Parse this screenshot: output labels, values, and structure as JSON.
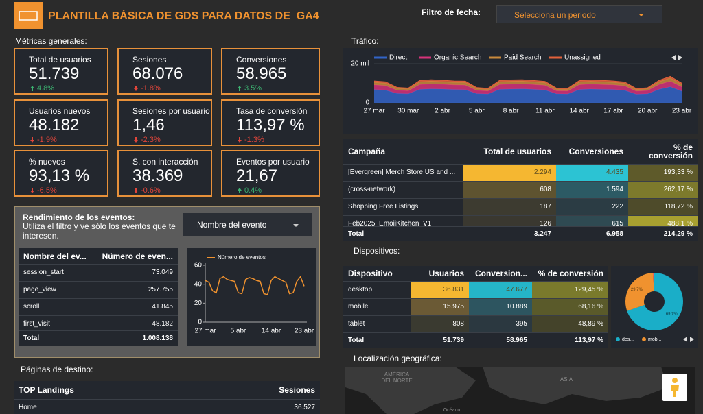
{
  "header": {
    "title": "PLANTILLA BÁSICA DE GDS PARA DATOS DE  GA4",
    "date_filter_label": "Filtro de fecha:",
    "date_filter_placeholder": "Selecciona un periodo"
  },
  "metrics": {
    "title": "Métricas generales:",
    "cards": [
      {
        "label": "Total de usuarios",
        "value": "51.739",
        "change": "4.8%",
        "trend": "up"
      },
      {
        "label": "Sesiones",
        "value": "68.076",
        "change": "-1.8%",
        "trend": "down"
      },
      {
        "label": "Conversiones",
        "value": "58.965",
        "change": "3.5%",
        "trend": "up"
      },
      {
        "label": "Usuarios nuevos",
        "value": "48.182",
        "change": "-1.9%",
        "trend": "down"
      },
      {
        "label": "Sesiones por usuario",
        "value": "1,46",
        "change": "-2.3%",
        "trend": "down"
      },
      {
        "label": "Tasa de conversión",
        "value": "113,97 %",
        "change": "-1.3%",
        "trend": "down"
      },
      {
        "label": "% nuevos",
        "value": "93,13 %",
        "change": "-6.5%",
        "trend": "down"
      },
      {
        "label": "S. con interacción",
        "value": "38.369",
        "change": "-0.6%",
        "trend": "down"
      },
      {
        "label": "Eventos por usuario",
        "value": "21,67",
        "change": "0.4%",
        "trend": "up"
      }
    ]
  },
  "traffic": {
    "title": "Tráfico:",
    "chart_data": {
      "type": "area",
      "stacked": true,
      "categories": [
        "27 mar",
        null,
        null,
        "30 mar",
        null,
        null,
        "2 abr",
        null,
        null,
        "5 abr",
        null,
        null,
        "8 abr",
        null,
        null,
        "11 abr",
        null,
        null,
        "14 abr",
        null,
        null,
        "17 abr",
        null,
        null,
        "20 abr",
        null,
        null,
        "23 abr"
      ],
      "series": [
        {
          "name": "Direct",
          "color": "#3264c8",
          "values": [
            6800,
            6500,
            4800,
            4600,
            6900,
            7100,
            7000,
            6800,
            6700,
            4700,
            4500,
            6900,
            7000,
            7100,
            6900,
            6600,
            4600,
            4500,
            6800,
            7000,
            6900,
            6800,
            6400,
            4400,
            4600,
            6900,
            8200,
            6000
          ]
        },
        {
          "name": "Organic Search",
          "color": "#d6337a",
          "values": [
            2400,
            2300,
            1700,
            1600,
            2500,
            2600,
            2500,
            2400,
            2400,
            1700,
            1600,
            2500,
            2600,
            2600,
            2500,
            2400,
            1600,
            1600,
            2500,
            2600,
            2500,
            2400,
            2300,
            1600,
            1700,
            2500,
            2900,
            2200
          ]
        },
        {
          "name": "Paid Search",
          "color": "#c98a3c",
          "values": [
            1300,
            1250,
            900,
            850,
            1350,
            1400,
            1350,
            1300,
            1300,
            900,
            850,
            1350,
            1400,
            1400,
            1350,
            1300,
            850,
            850,
            1350,
            1400,
            1350,
            1300,
            1250,
            850,
            900,
            1350,
            1600,
            1200
          ]
        },
        {
          "name": "Unassigned",
          "color": "#e3613b",
          "values": [
            700,
            680,
            500,
            480,
            720,
            740,
            720,
            700,
            690,
            500,
            480,
            720,
            740,
            730,
            710,
            690,
            480,
            470,
            720,
            740,
            720,
            700,
            680,
            470,
            490,
            720,
            850,
            650
          ]
        }
      ],
      "ylim": [
        0,
        20000
      ],
      "yticks": [
        0,
        {
          "value": 20000,
          "label": "20 mil"
        }
      ]
    }
  },
  "campaigns": {
    "columns": [
      "Campaña",
      "Total de usuarios",
      "Conversiones",
      "% de conversión"
    ],
    "rows": [
      [
        "[Evergreen] Merch Store US and ...",
        "2.294",
        "4.435",
        "193,33 %"
      ],
      [
        "(cross-network)",
        "608",
        "1.594",
        "262,17 %"
      ],
      [
        "Shopping Free Listings",
        "187",
        "222",
        "118,72 %"
      ],
      [
        "Feb2025_EmojiKitchen_V1",
        "126",
        "615",
        "488,1 %"
      ]
    ],
    "total": [
      "Total",
      "3.247",
      "6.958",
      "214,29 %"
    ]
  },
  "events": {
    "title": "Rendimiento de los eventos:",
    "subtitle": "Utiliza el filtro y ve sólo los eventos que te interesen.",
    "filter": "Nombre del evento",
    "table": {
      "columns": [
        "Nombre del ev...",
        "Número de even..."
      ],
      "rows": [
        [
          "session_start",
          "73.049"
        ],
        [
          "page_view",
          "257.755"
        ],
        [
          "scroll",
          "41.845"
        ],
        [
          "first_visit",
          "48.182"
        ]
      ],
      "total": [
        "Total",
        "1.008.138"
      ]
    },
    "chart_data": {
      "type": "line",
      "categories": [
        "27 mar",
        null,
        null,
        null,
        null,
        null,
        null,
        null,
        null,
        "5 abr",
        null,
        null,
        null,
        null,
        null,
        null,
        null,
        null,
        "14 abr",
        null,
        null,
        null,
        null,
        null,
        null,
        null,
        null,
        "23 abr"
      ],
      "series": [
        {
          "name": "Número de eventos",
          "color": "#f0922f",
          "values": [
            44,
            42,
            33,
            31,
            46,
            48,
            45,
            44,
            43,
            31,
            30,
            45,
            47,
            46,
            44,
            43,
            30,
            29,
            44,
            48,
            46,
            44,
            42,
            30,
            31,
            43,
            48,
            38
          ]
        }
      ],
      "ylim": [
        0,
        60
      ],
      "yticks": [
        0,
        20,
        40,
        60
      ]
    }
  },
  "devices": {
    "title": "Dispositivos:",
    "table": {
      "columns": [
        "Dispositivo",
        "Usuarios",
        "Conversion...",
        "% de conversión"
      ],
      "rows": [
        [
          "desktop",
          "36.831",
          "47.677",
          "129,45 %"
        ],
        [
          "mobile",
          "15.975",
          "10.889",
          "68,16 %"
        ],
        [
          "tablet",
          "808",
          "395",
          "48,89 %"
        ]
      ],
      "total": [
        "Total",
        "51.739",
        "58.965",
        "113,97 %"
      ]
    },
    "chart_data": {
      "type": "pie",
      "donut": true,
      "categories": [
        "des...",
        "mob...",
        null
      ],
      "values": [
        69.7,
        29.7,
        0.6
      ],
      "value_labels": [
        "69,7%",
        "29,7%",
        null
      ],
      "colors": [
        "#1aaec8",
        "#f0922f",
        "#e8308c"
      ]
    }
  },
  "map": {
    "title": "Localización geográfica:",
    "labels": [
      "AMÉRICA",
      "DEL NORTE",
      "ASIA",
      "Océano"
    ]
  },
  "landing": {
    "title": "Páginas de destino:",
    "columns": [
      "TOP Landings",
      "Sesiones"
    ],
    "rows": [
      [
        "Home",
        "36.527"
      ]
    ]
  }
}
